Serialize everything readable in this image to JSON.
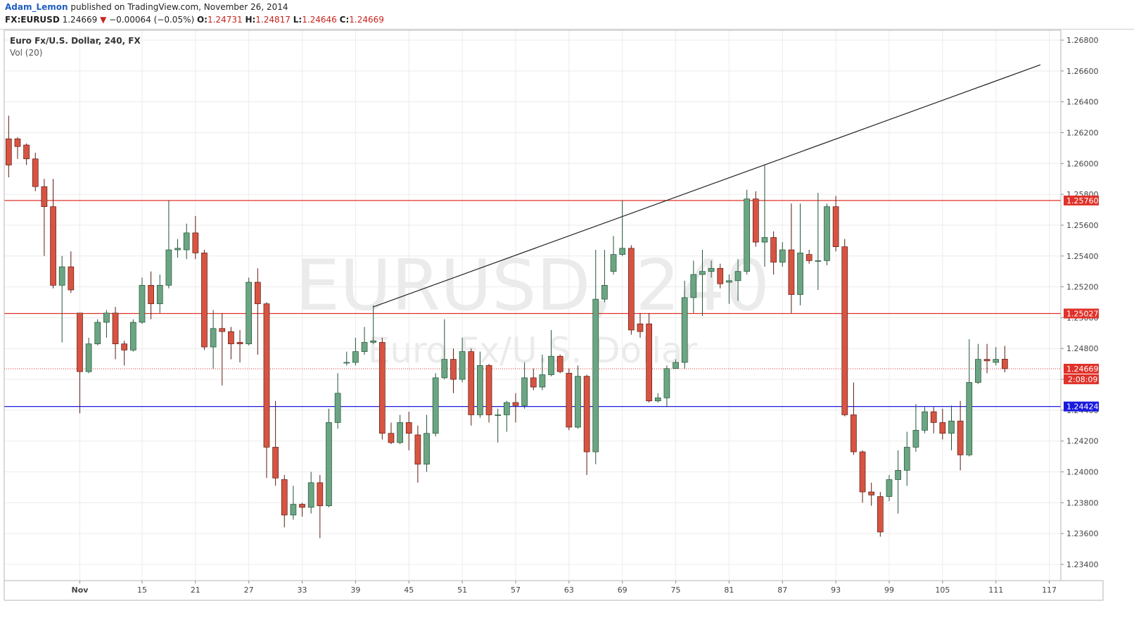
{
  "header": {
    "author": "Adam_Lemon",
    "published": "published on TradingView.com, November 26, 2014",
    "symbol": "FX:EURUSD",
    "last": "1.24669",
    "arrow": "▼",
    "change": "−0.00064 (−0.05%)",
    "o_label": "O:",
    "o": "1.24731",
    "h_label": "H:",
    "h": "1.24817",
    "l_label": "L:",
    "l": "1.24646",
    "c_label": "C:",
    "c": "1.24669"
  },
  "chart_data": {
    "type": "candlestick",
    "title": "Euro Fx/U.S. Dollar, 240, FX",
    "indicator": "Vol (20)",
    "watermark": "EURUSD, 240",
    "watermark_subtitle": "Euro Fx/U.S. Dollar",
    "open": [
      1.2616,
      1.2616,
      1.2612,
      1.2603,
      1.2585,
      1.2572,
      1.2521,
      1.2533,
      1.2503,
      1.2465,
      1.2483,
      1.2497,
      1.2503,
      1.2483,
      1.2479,
      1.2497,
      1.2521,
      1.2509,
      1.2521,
      1.2544,
      1.2544,
      1.2555,
      1.2542,
      1.2481,
      1.2493,
      1.2491,
      1.2484,
      1.2483,
      1.2523,
      1.2509,
      1.2416,
      1.2395,
      1.2372,
      1.2379,
      1.2377,
      1.2393,
      1.2378,
      1.2432,
      1.2471,
      1.2471,
      1.2478,
      1.2484,
      1.2484,
      1.2425,
      1.2419,
      1.2432,
      1.2424,
      1.2405,
      1.2425,
      1.2461,
      1.2473,
      1.246,
      1.2478,
      1.2437,
      1.2469,
      1.2437,
      1.2437,
      1.2445,
      1.2443,
      1.2461,
      1.2455,
      1.2463,
      1.2475,
      1.2464,
      1.2429,
      1.2462,
      1.2413,
      1.2512,
      1.253,
      1.2541,
      1.2545,
      1.2496,
      1.2496,
      1.2446,
      1.2448,
      1.2467,
      1.2471,
      1.2513,
      1.2528,
      1.253,
      1.2532,
      1.2523,
      1.2524,
      1.253,
      1.2577,
      1.2549,
      1.2552,
      1.2536,
      1.2544,
      1.2515,
      1.2541,
      1.2537,
      1.2537,
      1.2572,
      1.2546,
      1.2437,
      1.2413,
      1.2387,
      1.2384,
      1.2384,
      1.2395,
      1.2401,
      1.2416,
      1.2427,
      1.2439,
      1.2432,
      1.2425,
      1.2433,
      1.2411,
      1.2458,
      1.2473,
      1.2471,
      1.24731
    ],
    "high": [
      1.2631,
      1.2617,
      1.2613,
      1.2607,
      1.259,
      1.259,
      1.254,
      1.2543,
      1.2503,
      1.2487,
      1.2499,
      1.2505,
      1.2507,
      1.2485,
      1.2499,
      1.2526,
      1.253,
      1.2528,
      1.2576,
      1.2551,
      1.2561,
      1.2566,
      1.2544,
      1.2505,
      1.2503,
      1.2494,
      1.2492,
      1.2526,
      1.2532,
      1.251,
      1.2446,
      1.2398,
      1.2391,
      1.238,
      1.24,
      1.2398,
      1.2441,
      1.2464,
      1.2478,
      1.2487,
      1.2494,
      1.2508,
      1.2487,
      1.2432,
      1.2437,
      1.2439,
      1.243,
      1.2437,
      1.2464,
      1.2499,
      1.248,
      1.2487,
      1.248,
      1.2478,
      1.247,
      1.2441,
      1.2446,
      1.2451,
      1.2471,
      1.2467,
      1.2476,
      1.2492,
      1.2476,
      1.2467,
      1.2469,
      1.2463,
      1.2544,
      1.2544,
      1.2553,
      1.2576,
      1.2547,
      1.2503,
      1.2503,
      1.2451,
      1.2469,
      1.2473,
      1.2524,
      1.2537,
      1.2544,
      1.2537,
      1.2535,
      1.2528,
      1.2538,
      1.2583,
      1.2582,
      1.2599,
      1.2556,
      1.2549,
      1.2574,
      1.2574,
      1.2544,
      1.2581,
      1.2574,
      1.2579,
      1.2551,
      1.2458,
      1.2414,
      1.2393,
      1.2387,
      1.2398,
      1.2414,
      1.2426,
      1.2444,
      1.2442,
      1.2442,
      1.2441,
      1.2443,
      1.2446,
      1.2486,
      1.2483,
      1.2483,
      1.2481,
      1.24817
    ],
    "low": [
      1.2591,
      1.2603,
      1.2599,
      1.2582,
      1.254,
      1.2519,
      1.2484,
      1.2516,
      1.2438,
      1.2464,
      1.2482,
      1.2487,
      1.2473,
      1.2469,
      1.2478,
      1.2496,
      1.2499,
      1.2503,
      1.2519,
      1.2539,
      1.2538,
      1.2538,
      1.2479,
      1.2467,
      1.2456,
      1.2473,
      1.2471,
      1.2482,
      1.2476,
      1.2396,
      1.2391,
      1.2364,
      1.2369,
      1.2371,
      1.2373,
      1.2357,
      1.2377,
      1.2428,
      1.2469,
      1.2469,
      1.2476,
      1.2483,
      1.2421,
      1.2418,
      1.2418,
      1.2414,
      1.2393,
      1.24,
      1.2423,
      1.246,
      1.2451,
      1.2458,
      1.243,
      1.2435,
      1.2432,
      1.2419,
      1.2426,
      1.2432,
      1.2441,
      1.2453,
      1.2453,
      1.2462,
      1.2464,
      1.2427,
      1.2428,
      1.2398,
      1.2405,
      1.251,
      1.2528,
      1.254,
      1.2489,
      1.2487,
      1.2445,
      1.2445,
      1.2442,
      1.2468,
      1.2467,
      1.2503,
      1.2501,
      1.2526,
      1.2519,
      1.2509,
      1.2511,
      1.2528,
      1.2546,
      1.2533,
      1.2528,
      1.2533,
      1.2503,
      1.2508,
      1.2535,
      1.2518,
      1.2534,
      1.2543,
      1.2436,
      1.2411,
      1.238,
      1.2378,
      1.2358,
      1.2381,
      1.2373,
      1.2391,
      1.2413,
      1.2425,
      1.2425,
      1.2421,
      1.2414,
      1.2401,
      1.241,
      1.2457,
      1.2464,
      1.2469,
      1.24646
    ],
    "close": [
      1.2599,
      1.2611,
      1.2603,
      1.2585,
      1.2572,
      1.2521,
      1.2533,
      1.2518,
      1.2465,
      1.2483,
      1.2497,
      1.2503,
      1.2483,
      1.2479,
      1.2497,
      1.2521,
      1.2509,
      1.2521,
      1.2544,
      1.2545,
      1.2555,
      1.2542,
      1.2481,
      1.2493,
      1.2491,
      1.2483,
      1.2483,
      1.2523,
      1.2509,
      1.2416,
      1.2396,
      1.2372,
      1.2379,
      1.2377,
      1.2393,
      1.2378,
      1.2432,
      1.2451,
      1.2471,
      1.2478,
      1.2484,
      1.2485,
      1.2425,
      1.2419,
      1.2432,
      1.2425,
      1.2405,
      1.2425,
      1.2461,
      1.2473,
      1.246,
      1.2478,
      1.2437,
      1.2469,
      1.2437,
      1.2437,
      1.2445,
      1.2443,
      1.2461,
      1.2455,
      1.2463,
      1.2475,
      1.2465,
      1.2429,
      1.2462,
      1.2413,
      1.2512,
      1.2521,
      1.2541,
      1.2545,
      1.2492,
      1.2491,
      1.2446,
      1.2448,
      1.2467,
      1.2471,
      1.2513,
      1.2528,
      1.253,
      1.2532,
      1.2522,
      1.2524,
      1.253,
      1.2577,
      1.2549,
      1.2552,
      1.2536,
      1.2544,
      1.2515,
      1.2542,
      1.2537,
      1.2537,
      1.2572,
      1.2546,
      1.2437,
      1.2413,
      1.2387,
      1.2385,
      1.2361,
      1.2395,
      1.2401,
      1.2416,
      1.2427,
      1.2439,
      1.2432,
      1.2425,
      1.2433,
      1.2411,
      1.2458,
      1.2473,
      1.2472,
      1.2473,
      1.24669
    ],
    "up_color": "#6ba583",
    "down_color": "#d75442",
    "xlim": [
      -0.5,
      118.3
    ],
    "xticks": [
      {
        "value": 8,
        "label": "Nov"
      },
      15,
      21,
      27,
      33,
      39,
      45,
      51,
      57,
      63,
      69,
      75,
      81,
      87,
      93,
      99,
      105,
      111,
      117
    ],
    "ylim": [
      1.23295,
      1.26864
    ],
    "yticks": [
      {
        "value": 1.234,
        "label": "1.23400"
      },
      {
        "value": 1.236,
        "label": "1.23600"
      },
      {
        "value": 1.238,
        "label": "1.23800"
      },
      {
        "value": 1.24,
        "label": "1.24000"
      },
      {
        "value": 1.242,
        "label": "1.24200"
      },
      {
        "value": 1.244,
        "label": "1.24400"
      },
      {
        "value": 1.246,
        "label": "1.24600"
      },
      {
        "value": 1.248,
        "label": "1.24800"
      },
      {
        "value": 1.25,
        "label": "1.25000"
      },
      {
        "value": 1.252,
        "label": "1.25200"
      },
      {
        "value": 1.254,
        "label": "1.25400"
      },
      {
        "value": 1.256,
        "label": "1.25600"
      },
      {
        "value": 1.258,
        "label": "1.25800"
      },
      {
        "value": 1.26,
        "label": "1.26000"
      },
      {
        "value": 1.262,
        "label": "1.26200"
      },
      {
        "value": 1.264,
        "label": "1.26400"
      },
      {
        "value": 1.266,
        "label": "1.26600"
      },
      {
        "value": 1.268,
        "label": "1.26800"
      }
    ],
    "grid": true,
    "hlines": [
      {
        "value": 1.2576,
        "label": "1.25760",
        "color": "#e0322a"
      },
      {
        "value": 1.25027,
        "label": "1.25027",
        "color": "#e0322a"
      },
      {
        "value": 1.24424,
        "label": "1.24424",
        "color": "#1a1adf"
      }
    ],
    "last_price": {
      "value": 1.24669,
      "label": "1.24669",
      "color": "#e0322a"
    },
    "countdown": "2:08:09",
    "trendline": {
      "x": [
        41,
        116
      ],
      "y": [
        1.2507,
        1.2664
      ],
      "color": "#222222"
    }
  }
}
